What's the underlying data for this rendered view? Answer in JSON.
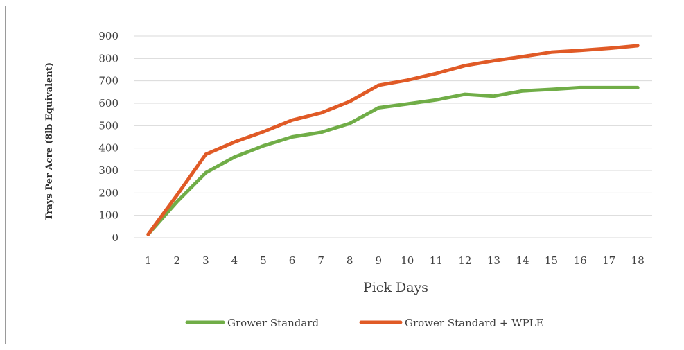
{
  "chart_data": {
    "type": "line",
    "title": "",
    "xlabel": "Pick Days",
    "ylabel": "Trays Per Acre (8lb Equivalent)",
    "categories": [
      "1",
      "2",
      "3",
      "4",
      "5",
      "6",
      "7",
      "8",
      "9",
      "10",
      "11",
      "12",
      "13",
      "14",
      "15",
      "16",
      "17",
      "18"
    ],
    "ylim": [
      0,
      900
    ],
    "yticks": [
      0,
      100,
      200,
      300,
      400,
      500,
      600,
      700,
      800,
      900
    ],
    "grid": true,
    "legend_position": "bottom",
    "series": [
      {
        "name": "Grower Standard",
        "color": "#70ad47",
        "values": [
          15,
          160,
          290,
          360,
          410,
          450,
          470,
          510,
          580,
          597,
          615,
          640,
          632,
          655,
          662,
          670,
          670,
          670
        ]
      },
      {
        "name": "Grower Standard + WPLE",
        "color": "#e05a26",
        "values": [
          15,
          190,
          372,
          427,
          473,
          525,
          557,
          608,
          680,
          703,
          733,
          768,
          790,
          808,
          828,
          836,
          845,
          857
        ]
      }
    ]
  }
}
